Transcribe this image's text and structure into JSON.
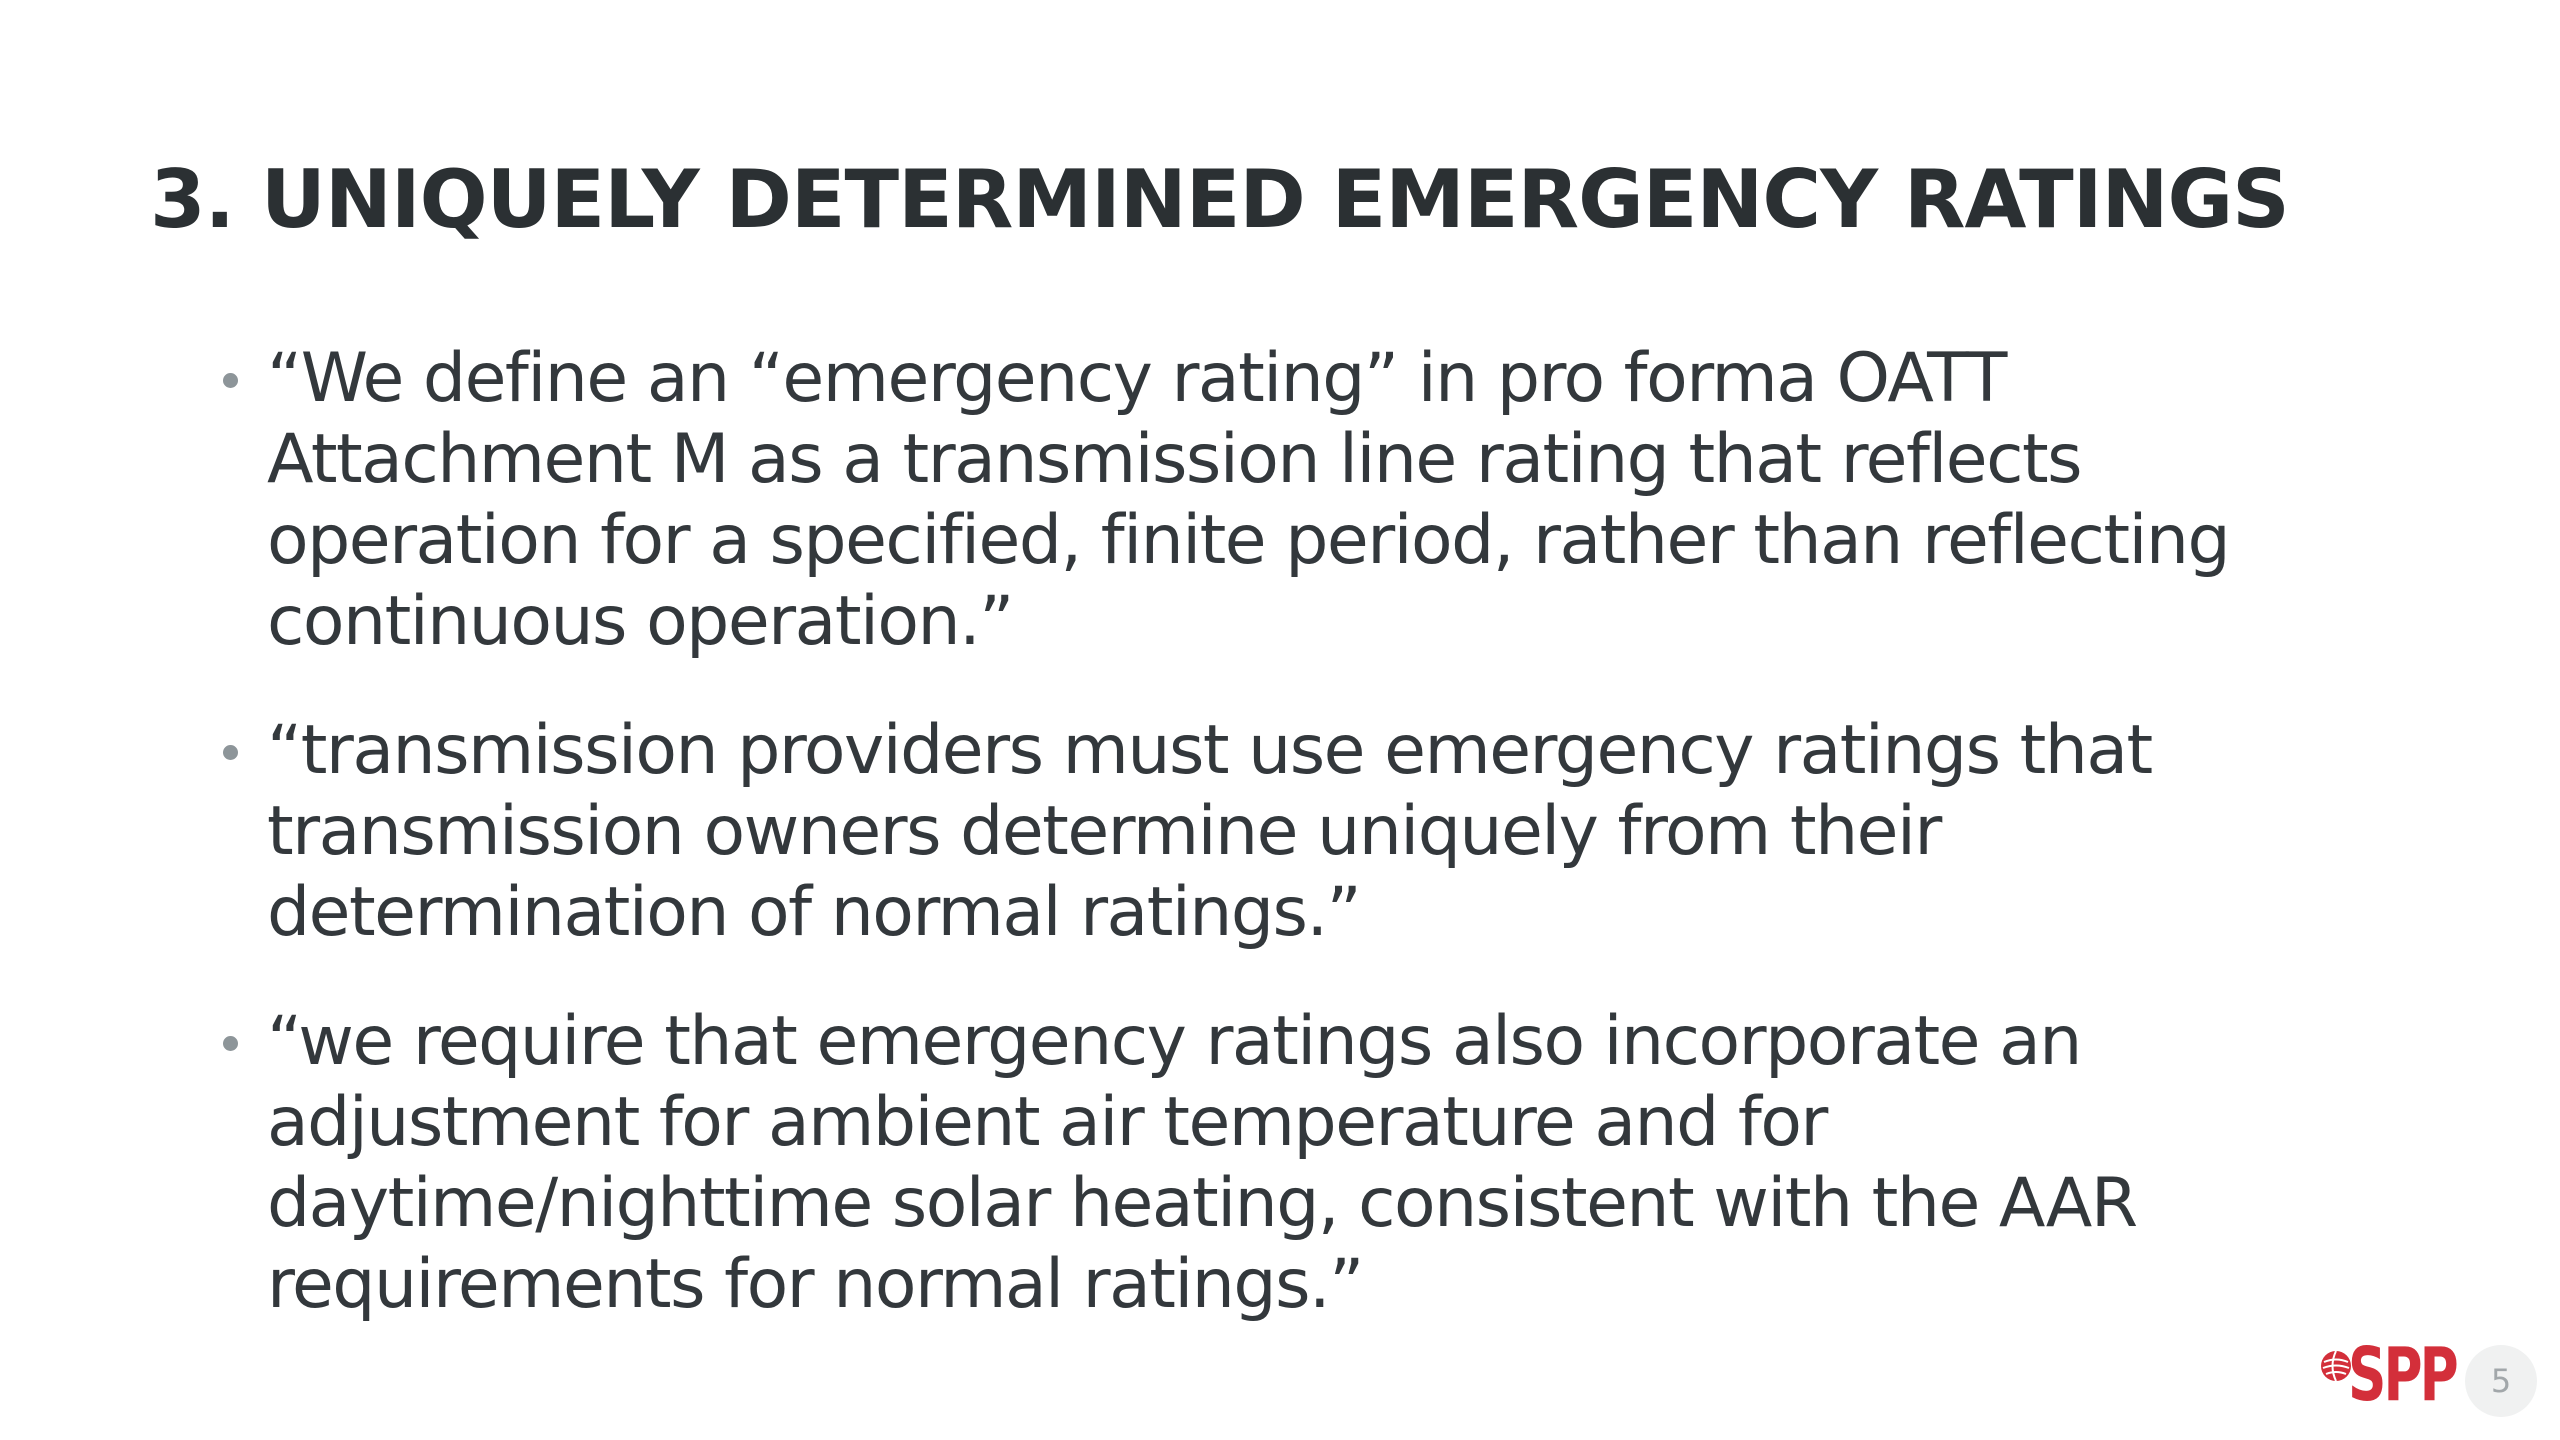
{
  "slide": {
    "title": "3. UNIQUELY DETERMINED EMERGENCY RATINGS",
    "bullets": [
      "“We define an “emergency rating” in pro forma OATT Attachment M as a transmission line rating that reflects operation for a specified, finite period, rather than reflecting continuous operation.”",
      "“transmission providers must use emergency ratings that transmission owners determine uniquely from their determination of normal ratings.”",
      "“we require that emergency ratings also incorporate an adjustment for ambient air temperature and for daytime/nighttime solar heating, consistent with the AAR requirements for normal ratings.”"
    ],
    "page_number": "5"
  },
  "logo": {
    "text": "SPP",
    "icon": "globe-icon",
    "color": "#d32f3a"
  },
  "colors": {
    "title": "#2b3033",
    "body": "#33383c",
    "bullet": "#8d9599"
  }
}
